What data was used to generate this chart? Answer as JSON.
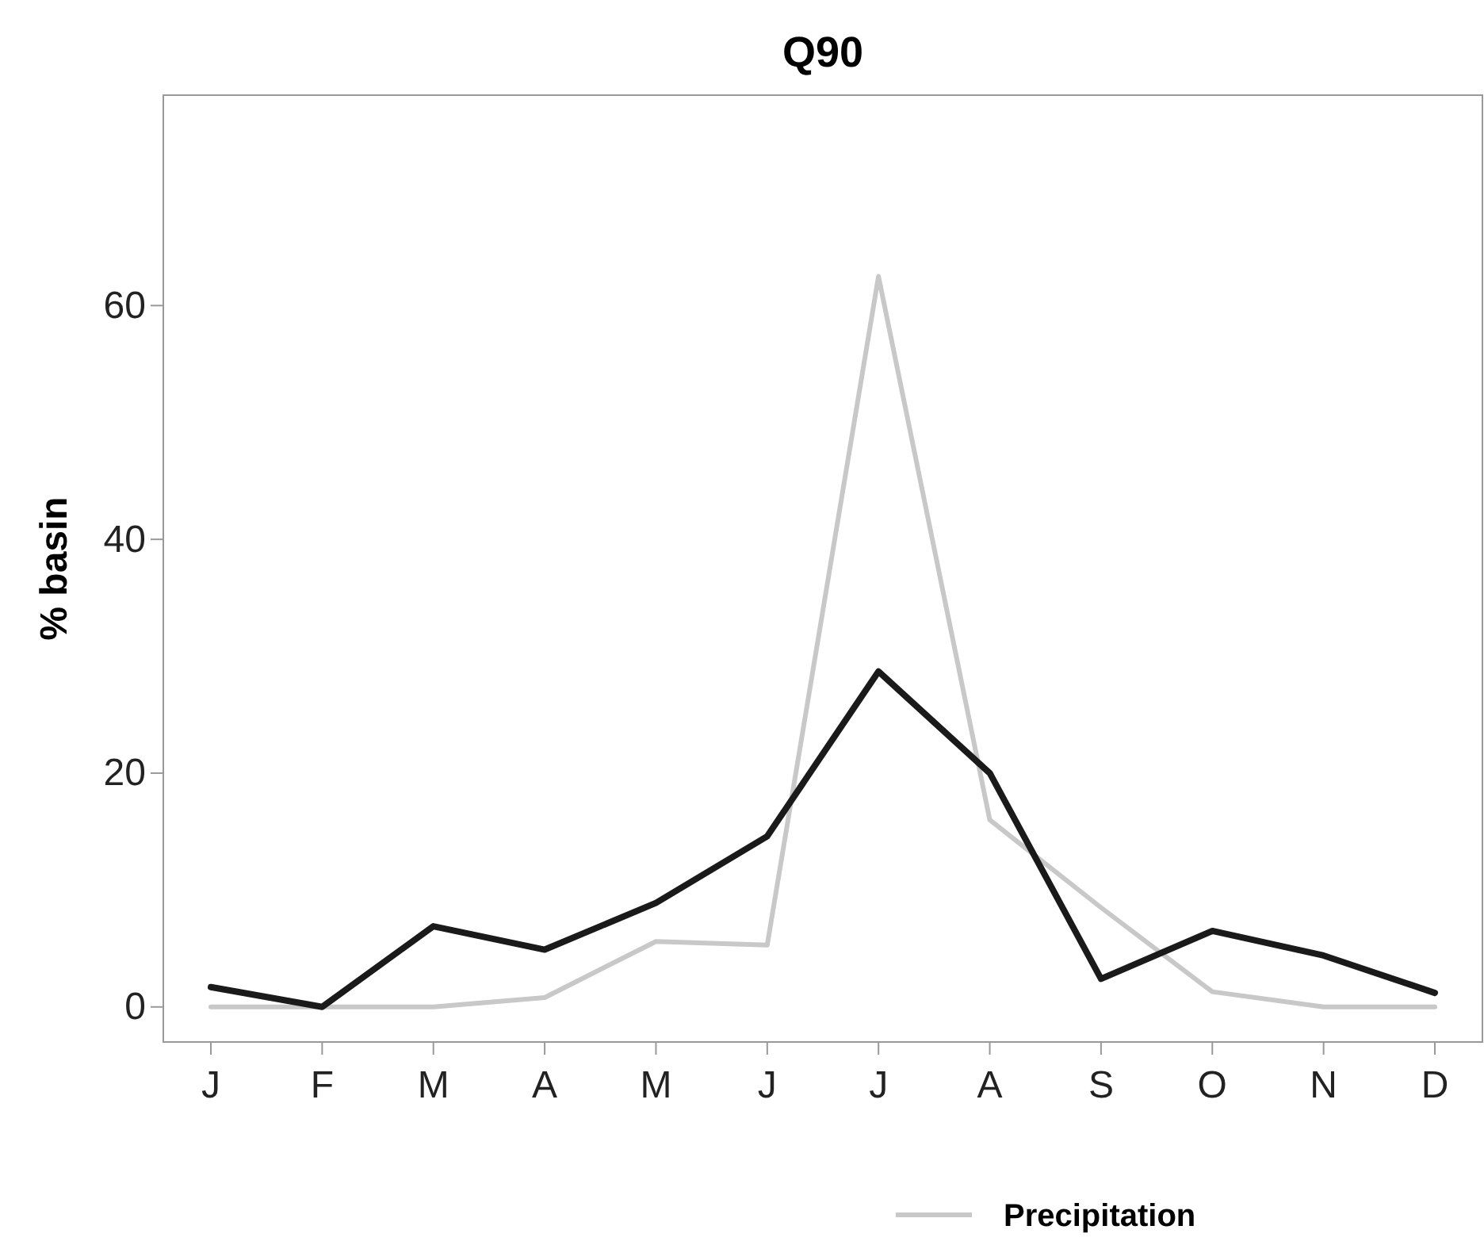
{
  "chart_data": {
    "type": "line",
    "title": "Q90",
    "ylabel": "% basin",
    "categories": [
      "J",
      "F",
      "M",
      "A",
      "M",
      "J",
      "J",
      "A",
      "S",
      "O",
      "N",
      "D"
    ],
    "ylim": [
      -3,
      78
    ],
    "yticks": [
      0,
      20,
      40,
      60
    ],
    "legend": "bottom",
    "grid": false,
    "series": [
      {
        "name": "Precipitation",
        "color": "#c8c8c8",
        "values": [
          0,
          0,
          0,
          0.8,
          5.6,
          5.3,
          62.5,
          16,
          8.5,
          1.3,
          0,
          0
        ]
      },
      {
        "color": "#1a1a1a",
        "values": [
          1.7,
          0,
          6.9,
          4.9,
          8.9,
          14.6,
          28.7,
          20,
          2.4,
          6.5,
          4.4,
          1.2
        ]
      }
    ]
  }
}
